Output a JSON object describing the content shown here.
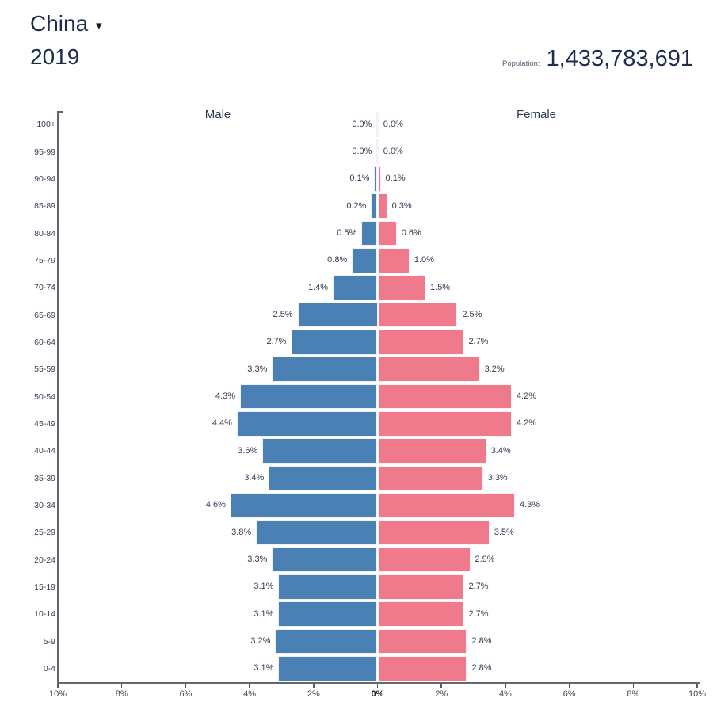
{
  "header": {
    "country": "China",
    "dropdown_icon": "▾",
    "year": "2019",
    "population_label": "Population:",
    "population_value": "1,433,783,691"
  },
  "chart_data": {
    "type": "bar",
    "variant": "population_pyramid",
    "title": "China 2019 population pyramid",
    "male_label": "Male",
    "female_label": "Female",
    "unit": "percent of total population",
    "categories": [
      "100+",
      "95-99",
      "90-94",
      "85-89",
      "80-84",
      "75-79",
      "70-74",
      "65-69",
      "60-64",
      "55-59",
      "50-54",
      "45-49",
      "40-44",
      "35-39",
      "30-34",
      "25-29",
      "20-24",
      "15-19",
      "10-14",
      "5-9",
      "0-4"
    ],
    "series": [
      {
        "name": "Male",
        "color": "#4a80b4",
        "values": [
          0.0,
          0.0,
          0.1,
          0.2,
          0.5,
          0.8,
          1.4,
          2.5,
          2.7,
          3.3,
          4.3,
          4.4,
          3.6,
          3.4,
          4.6,
          3.8,
          3.3,
          3.1,
          3.1,
          3.2,
          3.1
        ]
      },
      {
        "name": "Female",
        "color": "#ee7a8b",
        "values": [
          0.0,
          0.0,
          0.1,
          0.3,
          0.6,
          1.0,
          1.5,
          2.5,
          2.7,
          3.2,
          4.2,
          4.2,
          3.4,
          3.3,
          4.3,
          3.5,
          2.9,
          2.7,
          2.7,
          2.8,
          2.8
        ]
      }
    ],
    "x_axis": {
      "tick_labels": [
        "10%",
        "8%",
        "6%",
        "4%",
        "2%",
        "0%",
        "2%",
        "4%",
        "6%",
        "8%",
        "10%"
      ],
      "max_percent": 10,
      "center_label_index": 5
    }
  }
}
